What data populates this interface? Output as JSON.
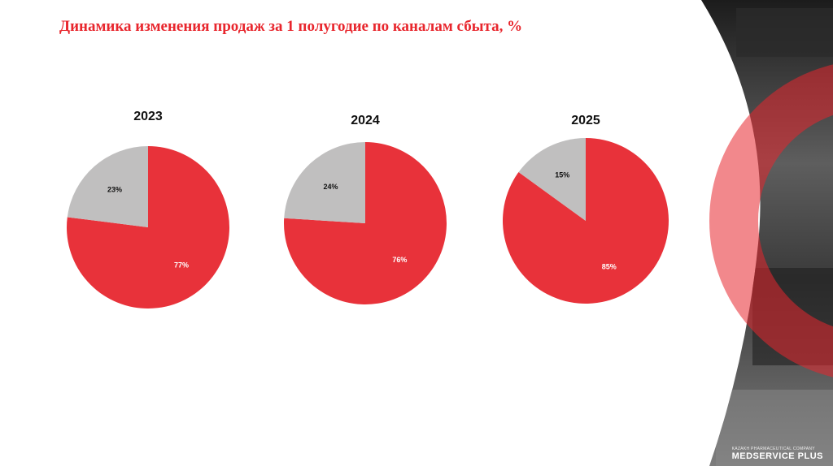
{
  "slide": {
    "title": "Динамика изменения продаж за 1 полугодие по каналам сбыта, %"
  },
  "brand": {
    "tagline": "KAZAKH PHARMACEUTICAL COMPANY",
    "name": "MEDSERVICE PLUS",
    "accent_color": "#e8262d"
  },
  "chart_data": [
    {
      "type": "pie",
      "title": "2023",
      "slices": [
        {
          "label": "77%",
          "value": 77,
          "color": "#e8323a"
        },
        {
          "label": "23%",
          "value": 23,
          "color": "#c0bfbf"
        }
      ]
    },
    {
      "type": "pie",
      "title": "2024",
      "slices": [
        {
          "label": "76%",
          "value": 76,
          "color": "#e8323a"
        },
        {
          "label": "24%",
          "value": 24,
          "color": "#c0bfbf"
        }
      ]
    },
    {
      "type": "pie",
      "title": "2025",
      "slices": [
        {
          "label": "85%",
          "value": 85,
          "color": "#e8323a"
        },
        {
          "label": "15%",
          "value": 15,
          "color": "#c0bfbf"
        }
      ]
    }
  ]
}
